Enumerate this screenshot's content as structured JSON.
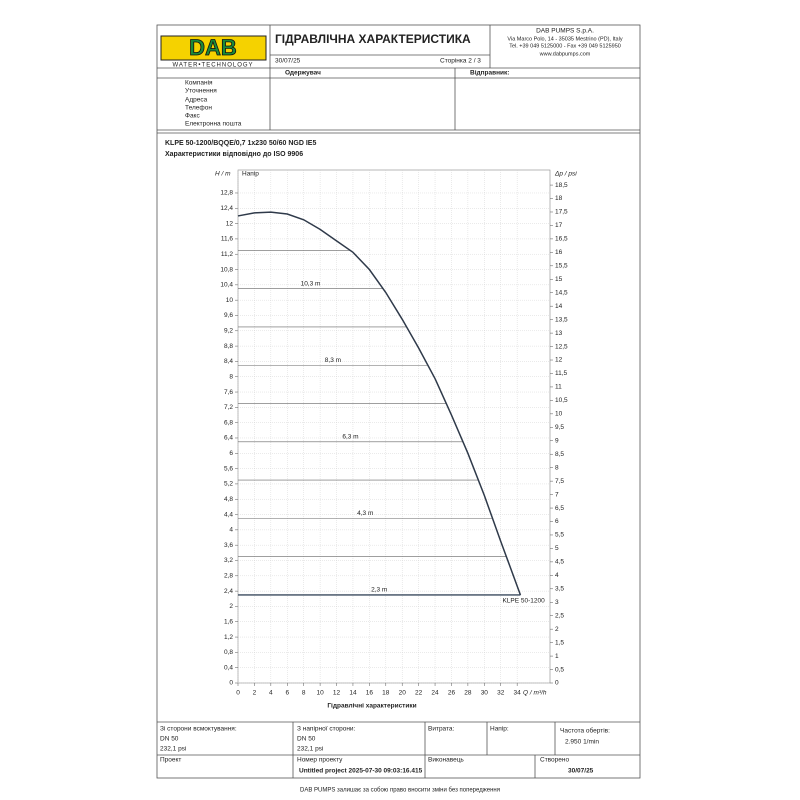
{
  "header": {
    "logo": "DAB",
    "logo_tagline": "WATER•TECHNOLOGY",
    "title": "ГІДРАВЛІЧНА ХАРАКТЕРИСТИКА",
    "date": "30/07/25",
    "page": "Сторінка 2 / 3",
    "company": [
      "DAB PUMPS S.p.A.",
      "Via Marco Polo, 14 - 35035 Mestrino (PD), Italy",
      "Tel. +39 049 5125000 - Fax +39 049 5125950",
      "www.dabpumps.com"
    ]
  },
  "recipient": {
    "label": "Одержувач",
    "sender": "Відправник:",
    "fields": [
      "Компанія",
      "Уточнення",
      "Адреса",
      "Телефон",
      "Факс",
      "Електронна пошта"
    ]
  },
  "product": {
    "name": "KLPE 50-1200/BQQE/0,7 1x230 50/60 NGD IE5",
    "subtitle": "Характеристики відповідно до ISO 9906"
  },
  "chart_data": {
    "type": "line",
    "y_label": "H / m",
    "y2_label": "Δp / psi",
    "x_label": "Q / m³/h",
    "x_title": "Гідравлічні характеристики",
    "corner_label": "Напір",
    "grid": true,
    "x": [
      0,
      2,
      4,
      6,
      8,
      10,
      12,
      14,
      16,
      18,
      20,
      22,
      24,
      26,
      28,
      30,
      32,
      34.4
    ],
    "series": [
      {
        "name": "KLPE 50-1200",
        "color": "#2f3a4a",
        "values": [
          12.2,
          12.28,
          12.3,
          12.25,
          12.1,
          11.85,
          11.55,
          11.25,
          10.8,
          10.2,
          9.5,
          8.75,
          7.95,
          7.0,
          6.0,
          4.9,
          3.7,
          2.3
        ]
      }
    ],
    "reference_lines": {
      "values": [
        2.3,
        3.3,
        4.3,
        5.3,
        6.3,
        7.3,
        8.3,
        9.3,
        10.3,
        11.3
      ],
      "value_labels": [
        "2,3 m",
        null,
        "4,3 m",
        null,
        "6,3 m",
        null,
        "8,3 m",
        null,
        "10,3 m",
        null
      ]
    },
    "xlim": [
      0,
      38
    ],
    "xticks": [
      0,
      2,
      4,
      6,
      8,
      10,
      12,
      14,
      16,
      18,
      20,
      22,
      24,
      26,
      28,
      30,
      32,
      34
    ],
    "ylim": [
      0,
      13.4
    ],
    "yticks": [
      0,
      {
        "value": 0.4,
        "label": "0,4"
      },
      {
        "value": 0.8,
        "label": "0,8"
      },
      {
        "value": 1.2,
        "label": "1,2"
      },
      {
        "value": 1.6,
        "label": "1,6"
      },
      2,
      {
        "value": 2.4,
        "label": "2,4"
      },
      {
        "value": 2.8,
        "label": "2,8"
      },
      {
        "value": 3.2,
        "label": "3,2"
      },
      {
        "value": 3.6,
        "label": "3,6"
      },
      4,
      {
        "value": 4.4,
        "label": "4,4"
      },
      {
        "value": 4.8,
        "label": "4,8"
      },
      {
        "value": 5.2,
        "label": "5,2"
      },
      {
        "value": 5.6,
        "label": "5,6"
      },
      6,
      {
        "value": 6.4,
        "label": "6,4"
      },
      {
        "value": 6.8,
        "label": "6,8"
      },
      {
        "value": 7.2,
        "label": "7,2"
      },
      {
        "value": 7.6,
        "label": "7,6"
      },
      8,
      {
        "value": 8.4,
        "label": "8,4"
      },
      {
        "value": 8.8,
        "label": "8,8"
      },
      {
        "value": 9.2,
        "label": "9,2"
      },
      {
        "value": 9.6,
        "label": "9,6"
      },
      10,
      {
        "value": 10.4,
        "label": "10,4"
      },
      {
        "value": 10.8,
        "label": "10,8"
      },
      {
        "value": 11.2,
        "label": "11,2"
      },
      {
        "value": 11.6,
        "label": "11,6"
      },
      12,
      {
        "value": 12.4,
        "label": "12,4"
      },
      {
        "value": 12.8,
        "label": "12,8"
      }
    ],
    "y2lim": [
      0,
      19.06
    ],
    "y2ticks": [
      0,
      {
        "value": 0.5,
        "label": "0,5"
      },
      1,
      {
        "value": 1.5,
        "label": "1,5"
      },
      2,
      {
        "value": 2.5,
        "label": "2,5"
      },
      3,
      {
        "value": 3.5,
        "label": "3,5"
      },
      4,
      {
        "value": 4.5,
        "label": "4,5"
      },
      5,
      {
        "value": 5.5,
        "label": "5,5"
      },
      6,
      {
        "value": 6.5,
        "label": "6,5"
      },
      7,
      {
        "value": 7.5,
        "label": "7,5"
      },
      8,
      {
        "value": 8.5,
        "label": "8,5"
      },
      9,
      {
        "value": 9.5,
        "label": "9,5"
      },
      10,
      {
        "value": 10.5,
        "label": "10,5"
      },
      11,
      {
        "value": 11.5,
        "label": "11,5"
      },
      12,
      {
        "value": 12.5,
        "label": "12,5"
      },
      13,
      {
        "value": 13.5,
        "label": "13,5"
      },
      14,
      {
        "value": 14.5,
        "label": "14,5"
      },
      15,
      {
        "value": 15.5,
        "label": "15,5"
      },
      16,
      {
        "value": 16.5,
        "label": "16,5"
      },
      17,
      {
        "value": 17.5,
        "label": "17,5"
      },
      18,
      {
        "value": 18.5,
        "label": "18,5"
      }
    ]
  },
  "table": {
    "suction": "Зі сторони всмоктування:",
    "suction_dn": "DN 50",
    "suction_p": "232,1 psi",
    "discharge": "З напірної сторони:",
    "discharge_dn": "DN 50",
    "discharge_p": "232,1 psi",
    "flow": "Витрата:",
    "head": "Напір:",
    "speed": "Частота обертів:",
    "speed_value": "2.950 1/min",
    "project": "Проект",
    "project_no": "Номер проекту",
    "project_name": "Untitled project 2025-07-30 09:03:16.415",
    "author": "Виконавець",
    "created": "Створено",
    "created_date": "30/07/25"
  },
  "footer": "DAB PUMPS залишає за собою право вносити зміни без попередження"
}
